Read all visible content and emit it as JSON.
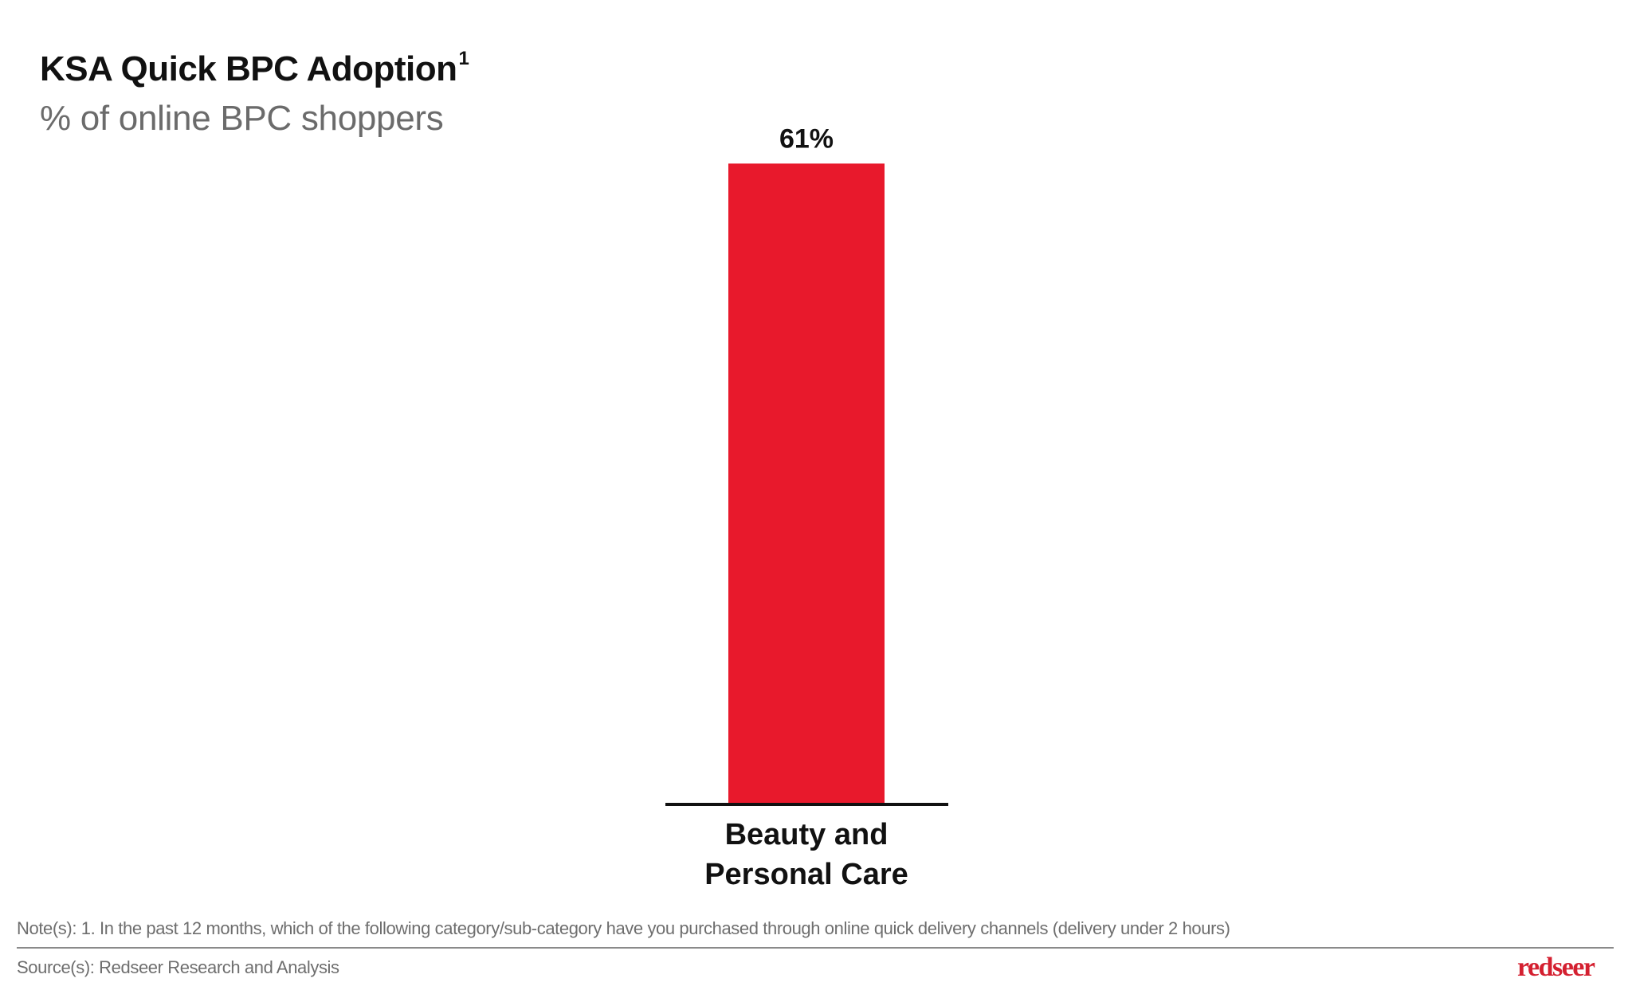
{
  "header": {
    "title": "KSA Quick BPC Adoption",
    "title_footnote_marker": "1",
    "subtitle": "% of online BPC shoppers"
  },
  "chart_data": {
    "type": "bar",
    "title": "KSA Quick BPC Adoption",
    "subtitle": "% of online BPC shoppers",
    "categories": [
      "Beauty and Personal Care"
    ],
    "category_label_lines": [
      [
        "Beauty and",
        "Personal Care"
      ]
    ],
    "values": [
      61
    ],
    "data_labels": [
      "61%"
    ],
    "unit": "%",
    "xlabel": "",
    "ylabel": "",
    "ylim": [
      0,
      76
    ],
    "grid": false,
    "legend": "none",
    "colors": {
      "bar": "#E8192C",
      "axis": "#111111",
      "label": "#111111"
    }
  },
  "footer": {
    "note": "Note(s): 1. In the past 12 months, which of the following category/sub-category have you purchased through online quick delivery channels (delivery under 2 hours)",
    "source": "Source(s): Redseer Research and Analysis",
    "logo_text": "redseer",
    "logo_color": "#D42030"
  }
}
